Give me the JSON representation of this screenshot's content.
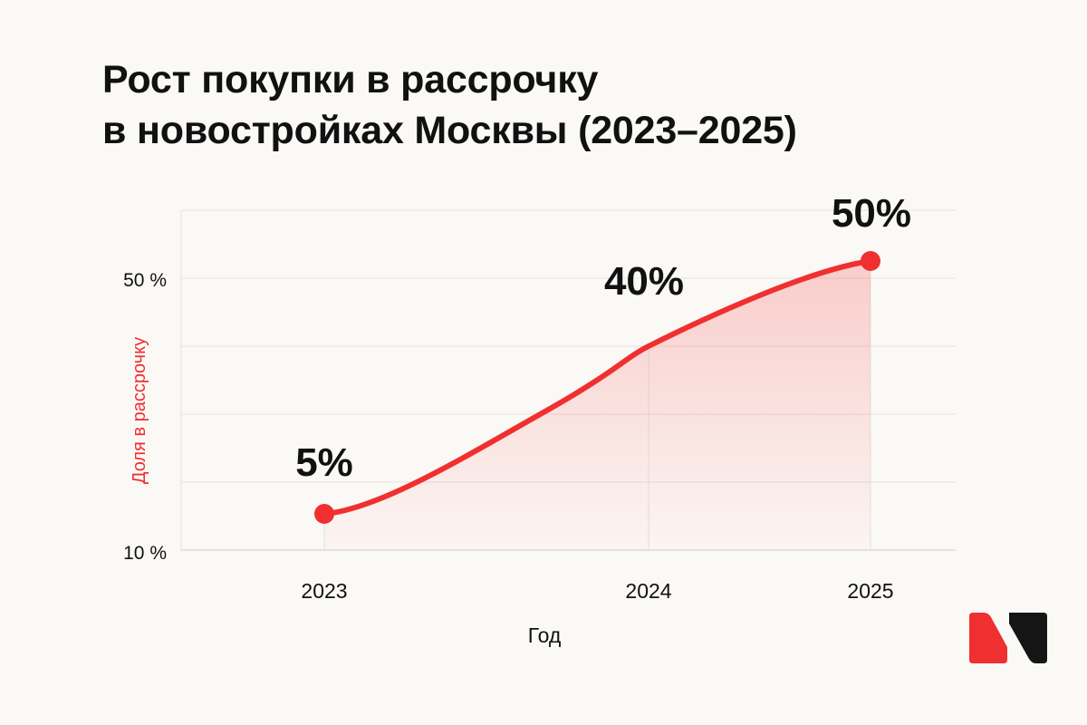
{
  "title": {
    "line1": "Рост покупки в рассрочку",
    "line2": "в новостройках Москвы (2023–2025)"
  },
  "colors": {
    "accent": "#f03030",
    "text": "#111111",
    "grid": "#e4e1de",
    "background": "#fbf9f6",
    "logo_dark": "#151515"
  },
  "logo": {
    "icon": "brand-logo-icon"
  },
  "chart_data": {
    "type": "area",
    "x": [
      "2023",
      "2024",
      "2025"
    ],
    "values": [
      5,
      40,
      50
    ],
    "data_labels": [
      "5%",
      "40%",
      "50%"
    ],
    "xlabel": "Год",
    "ylabel": "Доля в рассрочку",
    "yticks": [
      {
        "value": 10,
        "label": "10 %"
      },
      {
        "value": 50,
        "label": "50 %"
      }
    ],
    "smooth": true,
    "grid": true
  }
}
